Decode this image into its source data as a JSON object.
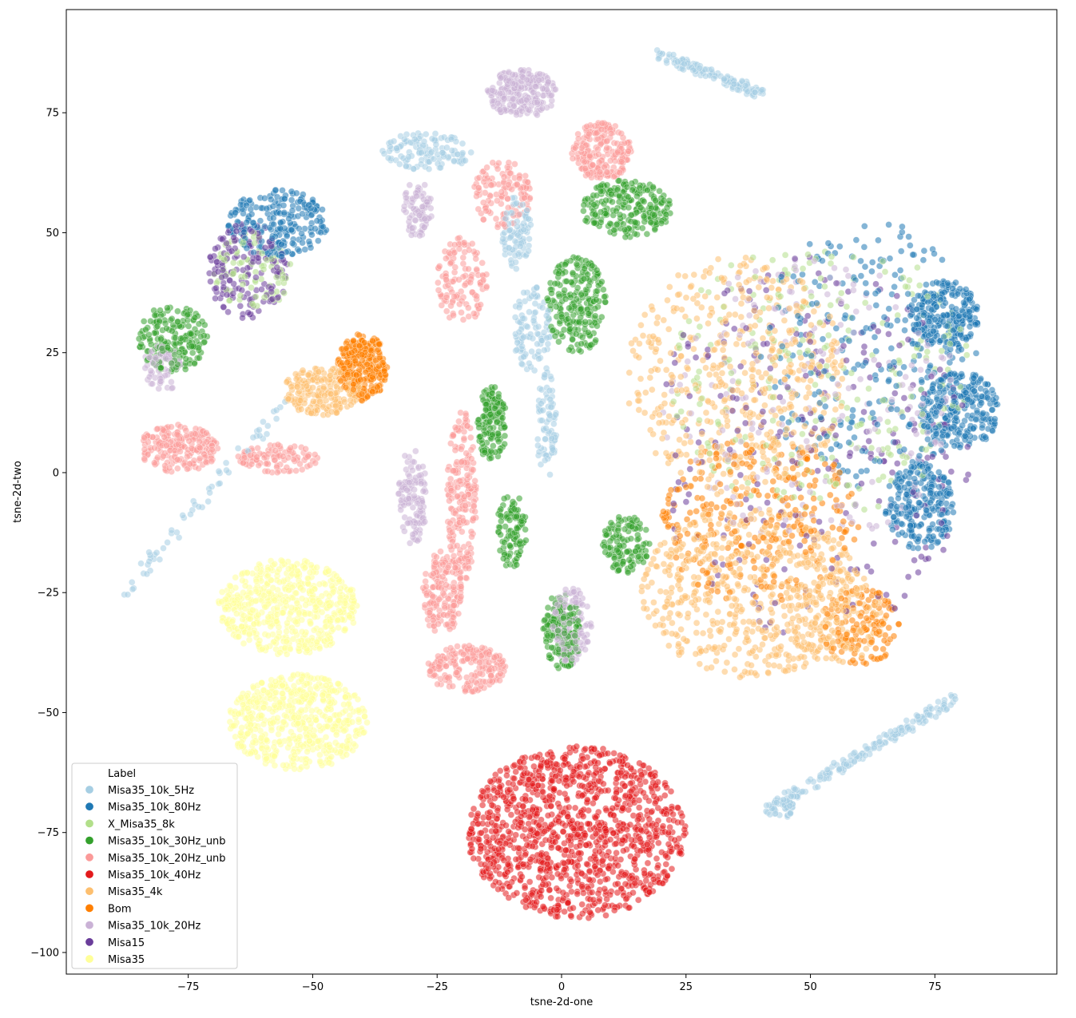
{
  "chart_data": {
    "type": "scatter",
    "title": "",
    "xlabel": "tsne-2d-one",
    "ylabel": "tsne-2d-two",
    "xlim": [
      -99.5,
      99.5
    ],
    "ylim": [
      -104.5,
      96.5
    ],
    "xticks": [
      -75,
      -50,
      -25,
      0,
      25,
      50,
      75
    ],
    "yticks": [
      -100,
      -75,
      -50,
      -25,
      0,
      25,
      50,
      75
    ],
    "xtick_labels": [
      "−75",
      "−50",
      "−25",
      "0",
      "25",
      "50",
      "75"
    ],
    "ytick_labels": [
      "−100",
      "−75",
      "−50",
      "−25",
      "0",
      "25",
      "50",
      "75"
    ],
    "grid": false,
    "legend": {
      "title": "Label",
      "position": "lower-left",
      "entries": [
        {
          "name": "Misa35_10k_5Hz",
          "color": "#a6cee3"
        },
        {
          "name": "Misa35_10k_80Hz",
          "color": "#1f78b4"
        },
        {
          "name": "X_Misa35_8k",
          "color": "#b2df8a"
        },
        {
          "name": "Misa35_10k_30Hz_unb",
          "color": "#33a02c"
        },
        {
          "name": "Misa35_10k_20Hz_unb",
          "color": "#fb9a99"
        },
        {
          "name": "Misa35_10k_40Hz",
          "color": "#e31a1c"
        },
        {
          "name": "Misa35_4k",
          "color": "#fdbf6f"
        },
        {
          "name": "Bom",
          "color": "#ff7f00"
        },
        {
          "name": "Misa35_10k_20Hz",
          "color": "#cab2d6"
        },
        {
          "name": "Misa15",
          "color": "#6a3d9a"
        },
        {
          "name": "Misa35",
          "color": "#ffff99"
        }
      ]
    },
    "series": [
      {
        "name": "Misa35_10k_5Hz",
        "color": "#a6cee3",
        "clusters": [
          {
            "cx": 30,
            "cy": 83,
            "rx": 11,
            "ry": 3,
            "n": 130,
            "shape": "line",
            "x2": 40,
            "y2": 79
          },
          {
            "cx": -27,
            "cy": 67,
            "rx": 9,
            "ry": 4,
            "n": 120
          },
          {
            "cx": -9,
            "cy": 50,
            "rx": 3,
            "ry": 8,
            "n": 90
          },
          {
            "cx": -6,
            "cy": 30,
            "rx": 4,
            "ry": 9,
            "n": 100
          },
          {
            "cx": -3,
            "cy": 10,
            "rx": 2,
            "ry": 12,
            "n": 80
          },
          {
            "cx": -73,
            "cy": -5,
            "rx": 5,
            "ry": 5,
            "n": 60,
            "shape": "line",
            "x1": -88,
            "y1": -25,
            "x2": -55,
            "y2": 15
          },
          {
            "cx": 60,
            "cy": -60,
            "rx": 12,
            "ry": 3,
            "n": 180,
            "shape": "line",
            "x1": 42,
            "y1": -70,
            "x2": 79,
            "y2": -47
          },
          {
            "cx": 44,
            "cy": -70,
            "rx": 3,
            "ry": 2,
            "n": 40
          }
        ]
      },
      {
        "name": "Misa35_10k_80Hz",
        "color": "#1f78b4",
        "clusters": [
          {
            "cx": -57,
            "cy": 52,
            "rx": 10,
            "ry": 7,
            "n": 220
          },
          {
            "cx": 77,
            "cy": 33,
            "rx": 7,
            "ry": 7,
            "n": 240
          },
          {
            "cx": 80,
            "cy": 13,
            "rx": 8,
            "ry": 8,
            "n": 260
          },
          {
            "cx": 72,
            "cy": -7,
            "rx": 7,
            "ry": 9,
            "n": 240
          },
          {
            "cx": 62,
            "cy": 25,
            "rx": 22,
            "ry": 28,
            "n": 260
          }
        ]
      },
      {
        "name": "X_Misa35_8k",
        "color": "#b2df8a",
        "clusters": [
          {
            "cx": -62,
            "cy": 42,
            "rx": 8,
            "ry": 8,
            "n": 90
          },
          {
            "cx": 52,
            "cy": 20,
            "rx": 30,
            "ry": 30,
            "n": 260
          }
        ]
      },
      {
        "name": "Misa35_10k_30Hz_unb",
        "color": "#33a02c",
        "clusters": [
          {
            "cx": -78,
            "cy": 28,
            "rx": 7,
            "ry": 7,
            "n": 180
          },
          {
            "cx": 13,
            "cy": 55,
            "rx": 9,
            "ry": 6,
            "n": 220
          },
          {
            "cx": 3,
            "cy": 35,
            "rx": 6,
            "ry": 10,
            "n": 220
          },
          {
            "cx": -14,
            "cy": 10,
            "rx": 3,
            "ry": 8,
            "n": 140
          },
          {
            "cx": -10,
            "cy": -12,
            "rx": 3,
            "ry": 8,
            "n": 100
          },
          {
            "cx": 0,
            "cy": -33,
            "rx": 4,
            "ry": 8,
            "n": 160
          },
          {
            "cx": 13,
            "cy": -15,
            "rx": 5,
            "ry": 6,
            "n": 120
          }
        ]
      },
      {
        "name": "Misa35_10k_20Hz_unb",
        "color": "#fb9a99",
        "clusters": [
          {
            "cx": 8,
            "cy": 67,
            "rx": 6,
            "ry": 6,
            "n": 200
          },
          {
            "cx": -12,
            "cy": 58,
            "rx": 6,
            "ry": 7,
            "n": 120
          },
          {
            "cx": -20,
            "cy": 40,
            "rx": 5,
            "ry": 9,
            "n": 120
          },
          {
            "cx": -77,
            "cy": 5,
            "rx": 8,
            "ry": 5,
            "n": 200
          },
          {
            "cx": -57,
            "cy": 3,
            "rx": 8,
            "ry": 3,
            "n": 100
          },
          {
            "cx": -20,
            "cy": -5,
            "rx": 3,
            "ry": 18,
            "n": 200
          },
          {
            "cx": -24,
            "cy": -25,
            "rx": 4,
            "ry": 9,
            "n": 160
          },
          {
            "cx": -19,
            "cy": -41,
            "rx": 8,
            "ry": 5,
            "n": 200
          }
        ]
      },
      {
        "name": "Misa35_10k_40Hz",
        "color": "#e31a1c",
        "clusters": [
          {
            "cx": 3,
            "cy": -75,
            "rx": 22,
            "ry": 18,
            "n": 1200
          }
        ]
      },
      {
        "name": "Misa35_4k",
        "color": "#fdbf6f",
        "clusters": [
          {
            "cx": -48,
            "cy": 17,
            "rx": 8,
            "ry": 5,
            "n": 200
          },
          {
            "cx": 35,
            "cy": 20,
            "rx": 22,
            "ry": 25,
            "n": 500
          },
          {
            "cx": 38,
            "cy": -25,
            "rx": 22,
            "ry": 18,
            "n": 600
          },
          {
            "cx": 55,
            "cy": -30,
            "rx": 10,
            "ry": 10,
            "n": 150
          }
        ]
      },
      {
        "name": "Bom",
        "color": "#ff7f00",
        "clusters": [
          {
            "cx": -40,
            "cy": 22,
            "rx": 5,
            "ry": 7,
            "n": 280
          },
          {
            "cx": 40,
            "cy": -10,
            "rx": 20,
            "ry": 18,
            "n": 280
          },
          {
            "cx": 60,
            "cy": -32,
            "rx": 8,
            "ry": 8,
            "n": 120
          }
        ]
      },
      {
        "name": "Misa35_10k_20Hz",
        "color": "#cab2d6",
        "clusters": [
          {
            "cx": -8,
            "cy": 79,
            "rx": 7,
            "ry": 5,
            "n": 220
          },
          {
            "cx": -29,
            "cy": 55,
            "rx": 3,
            "ry": 6,
            "n": 80
          },
          {
            "cx": -80,
            "cy": 22,
            "rx": 4,
            "ry": 5,
            "n": 70
          },
          {
            "cx": -30,
            "cy": -5,
            "rx": 3,
            "ry": 10,
            "n": 120
          },
          {
            "cx": 2,
            "cy": -32,
            "rx": 4,
            "ry": 8,
            "n": 140
          },
          {
            "cx": 50,
            "cy": 15,
            "rx": 30,
            "ry": 30,
            "n": 200
          }
        ]
      },
      {
        "name": "Misa15",
        "color": "#6a3d9a",
        "clusters": [
          {
            "cx": -63,
            "cy": 42,
            "rx": 8,
            "ry": 10,
            "n": 160
          },
          {
            "cx": 50,
            "cy": 5,
            "rx": 32,
            "ry": 40,
            "n": 260
          }
        ]
      },
      {
        "name": "Misa35",
        "color": "#ffff99",
        "clusters": [
          {
            "cx": -55,
            "cy": -28,
            "rx": 14,
            "ry": 10,
            "n": 550
          },
          {
            "cx": -53,
            "cy": -52,
            "rx": 14,
            "ry": 10,
            "n": 550
          }
        ]
      }
    ]
  }
}
